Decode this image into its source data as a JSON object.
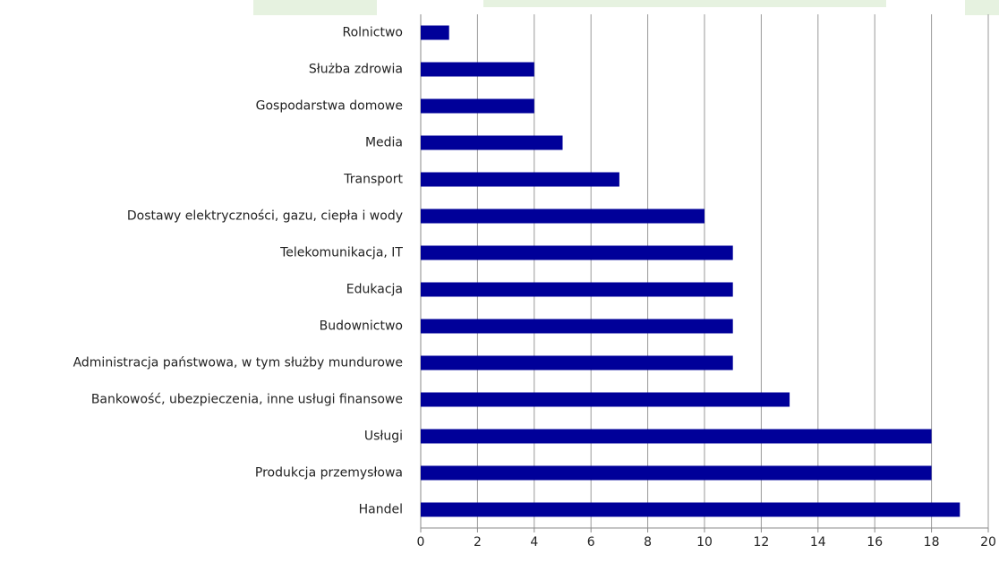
{
  "chart_data": {
    "type": "bar",
    "orientation": "horizontal",
    "categories": [
      "Rolnictwo",
      "Służba zdrowia",
      "Gospodarstwa domowe",
      "Media",
      "Transport",
      "Dostawy elektryczności, gazu, ciepła i wody",
      "Telekomunikacja, IT",
      "Edukacja",
      "Budownictwo",
      "Administracja państwowa,  w tym służby mundurowe",
      "Bankowość, ubezpieczenia, inne usługi finansowe",
      "Usługi",
      "Produkcja przemysłowa",
      "Handel"
    ],
    "values": [
      1,
      4,
      4,
      5,
      7,
      10,
      11,
      11,
      11,
      11,
      13,
      18,
      18,
      19
    ],
    "color": "#000099",
    "xlim": [
      0,
      20
    ],
    "xticks": [
      0,
      2,
      4,
      6,
      8,
      10,
      12,
      14,
      16,
      18,
      20
    ],
    "grid": true
  }
}
